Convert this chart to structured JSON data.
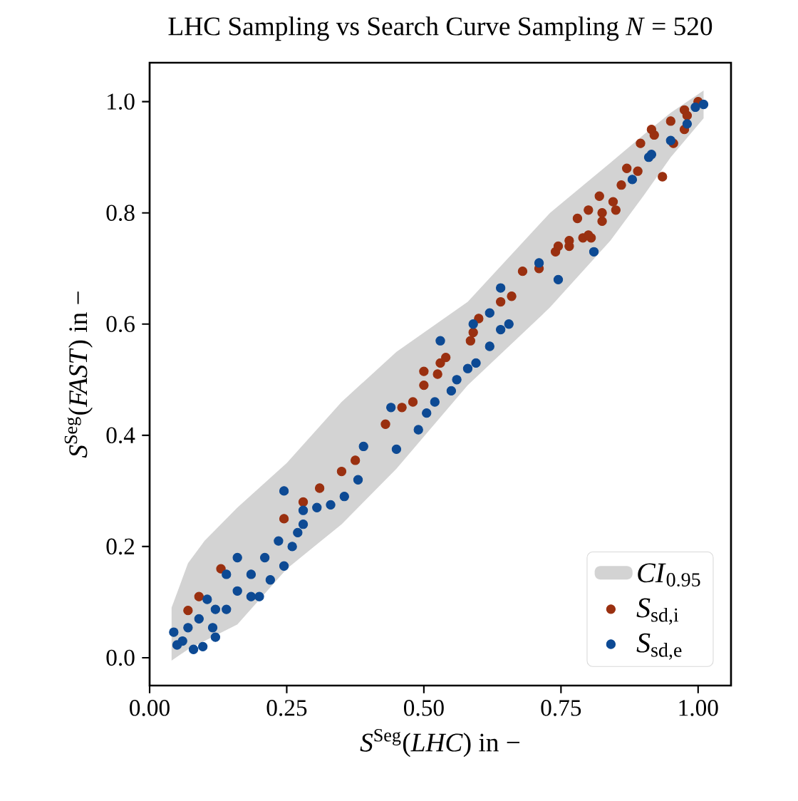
{
  "chart_data": {
    "type": "scatter",
    "title": "LHC Sampling vs Search Curve Sampling *N* = 520",
    "xlabel": "*S*$^{Seg}$(*LHC*) in −",
    "ylabel": "*S*$^{Seg}$(*FAST*) in −",
    "xlim": [
      0.0,
      1.06
    ],
    "ylim": [
      -0.05,
      1.07
    ],
    "xticks": [
      {
        "value": 0,
        "label": "0.00"
      },
      {
        "value": 0.25,
        "label": "0.25"
      },
      {
        "value": 0.5,
        "label": "0.50"
      },
      {
        "value": 0.75,
        "label": "0.75"
      },
      {
        "value": 1,
        "label": "1.00"
      }
    ],
    "yticks": [
      {
        "value": 0,
        "label": "0.0"
      },
      {
        "value": 0.2,
        "label": "0.2"
      },
      {
        "value": 0.4,
        "label": "0.4"
      },
      {
        "value": 0.6,
        "label": "0.6"
      },
      {
        "value": 0.8,
        "label": "0.8"
      },
      {
        "value": 1,
        "label": "1.0"
      }
    ],
    "legend": "bottom right",
    "marker": "circle",
    "grid": false,
    "series": [
      {
        "name": "*CI*$_{0.95}$",
        "type": "area",
        "marker": "none",
        "color": "#d3d3d3",
        "x": [
          0.04,
          0.07,
          0.1,
          0.16,
          0.25,
          0.35,
          0.45,
          0.58,
          0.73,
          0.84,
          0.9,
          0.95,
          1.01
        ],
        "values": [
          null,
          null,
          null,
          null,
          null,
          null,
          null,
          null,
          null,
          null,
          null,
          null,
          null
        ],
        "upper": [
          0.09,
          0.17,
          0.21,
          0.27,
          0.35,
          0.46,
          0.55,
          0.64,
          0.8,
          0.89,
          0.94,
          0.98,
          1.02
        ],
        "lower": [
          -0.005,
          0.015,
          0.03,
          0.06,
          0.16,
          0.24,
          0.34,
          0.49,
          0.63,
          0.75,
          0.83,
          0.9,
          0.97
        ]
      },
      {
        "name": "*S*$_{sd,i}$",
        "color": "#9a3010",
        "x": [
          0.07,
          0.09,
          0.13,
          0.245,
          0.28,
          0.31,
          0.35,
          0.375,
          0.43,
          0.46,
          0.48,
          0.5,
          0.5,
          0.525,
          0.53,
          0.54,
          0.585,
          0.59,
          0.6,
          0.64,
          0.66,
          0.68,
          0.71,
          0.74,
          0.765,
          0.79,
          0.805,
          0.78,
          0.825,
          0.8,
          0.825,
          0.845,
          0.86,
          0.89,
          0.915,
          0.92,
          0.95,
          0.975,
          1.0,
          0.935,
          0.87,
          0.85,
          0.82,
          0.895,
          0.955,
          0.975,
          0.745,
          0.765,
          0.8,
          0.915,
          0.98
        ],
        "values": [
          0.085,
          0.11,
          0.16,
          0.25,
          0.28,
          0.305,
          0.335,
          0.355,
          0.42,
          0.45,
          0.46,
          0.49,
          0.515,
          0.51,
          0.53,
          0.54,
          0.57,
          0.585,
          0.61,
          0.64,
          0.65,
          0.695,
          0.7,
          0.73,
          0.74,
          0.755,
          0.755,
          0.79,
          0.785,
          0.805,
          0.8,
          0.82,
          0.85,
          0.875,
          null,
          0.94,
          0.965,
          0.985,
          1.0,
          0.865,
          0.88,
          0.805,
          0.83,
          0.925,
          0.925,
          0.95,
          0.74,
          0.75,
          0.76,
          0.95,
          0.975
        ]
      },
      {
        "name": "*S*$_{sd,e}$",
        "color": "#0d4a94",
        "x": [
          0.044,
          0.08,
          0.097,
          0.115,
          0.12,
          0.16,
          0.185,
          0.21,
          0.235,
          0.26,
          0.245,
          0.2,
          0.16,
          0.27,
          0.28,
          0.28,
          0.305,
          0.33,
          0.355,
          0.38,
          0.245,
          0.07,
          0.09,
          0.06,
          0.14,
          0.185,
          0.22,
          0.14,
          0.105,
          0.12,
          0.05,
          0.39,
          0.45,
          0.49,
          0.505,
          0.52,
          0.55,
          0.56,
          0.58,
          0.595,
          0.44,
          0.53,
          0.59,
          0.62,
          0.64,
          0.655,
          0.62,
          0.64,
          0.71,
          0.745,
          0.81,
          0.88,
          0.91,
          0.915,
          0.95,
          0.98,
          0.995,
          1.01
        ],
        "values": [
          0.046,
          0.015,
          0.02,
          0.054,
          0.087,
          0.12,
          0.15,
          0.18,
          0.21,
          0.2,
          0.165,
          0.11,
          0.18,
          0.225,
          0.24,
          0.265,
          0.27,
          0.275,
          0.29,
          0.32,
          0.3,
          0.054,
          0.07,
          0.03,
          0.087,
          0.11,
          0.14,
          0.15,
          0.105,
          0.037,
          0.023,
          0.38,
          0.375,
          0.41,
          0.44,
          0.46,
          0.48,
          0.5,
          0.52,
          0.53,
          0.45,
          0.57,
          0.6,
          0.56,
          0.59,
          0.6,
          0.62,
          0.665,
          0.71,
          0.68,
          0.73,
          0.86,
          0.9,
          0.905,
          0.93,
          0.96,
          0.99,
          0.995
        ]
      }
    ]
  }
}
